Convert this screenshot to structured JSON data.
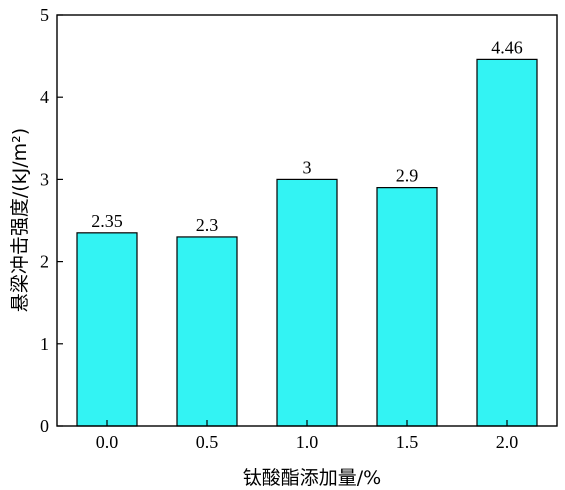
{
  "chart_data": {
    "type": "bar",
    "categories": [
      "0.0",
      "0.5",
      "1.0",
      "1.5",
      "2.0"
    ],
    "values": [
      2.35,
      2.3,
      3,
      2.9,
      4.46
    ],
    "value_labels": [
      "2.35",
      "2.3",
      "3",
      "2.9",
      "4.46"
    ],
    "xlabel": "钛酸酯添加量/%",
    "ylabel": "悬梁冲击强度/(kJ/m²)",
    "ylim": [
      0,
      5
    ],
    "yticks": [
      "0",
      "1",
      "2",
      "3",
      "4",
      "5"
    ],
    "bar_color": "#33f3f3",
    "edge_color": "#000000",
    "grid": false
  }
}
